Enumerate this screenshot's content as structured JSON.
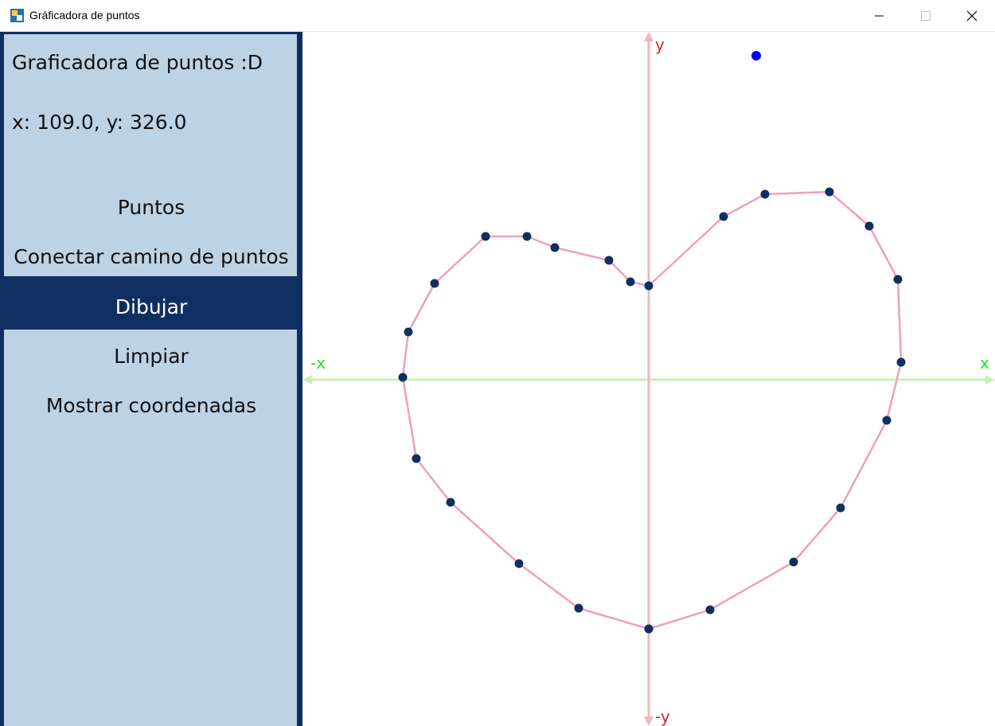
{
  "window": {
    "title": "Gráficadora de puntos",
    "icon": "python-icon",
    "controls": [
      "minimize-icon",
      "maximize-icon",
      "close-icon"
    ]
  },
  "sidebar": {
    "heading": "Graficadora de puntos :D",
    "coords_readout": "x: 109.0, y: 326.0",
    "buttons": {
      "points": "Puntos",
      "connect_path": "Conectar camino de puntos",
      "draw": "Dibujar",
      "clear": "Limpiar",
      "show_coords": "Mostrar coordenadas"
    },
    "active_button": "Dibujar"
  },
  "plot": {
    "axis_labels": {
      "x_pos": "x",
      "x_neg": "-x",
      "y_pos": "y",
      "y_neg": "-y"
    },
    "colors": {
      "x_axis": "#c9f0b4",
      "y_axis": "#f1b7bd",
      "x_label": "#22dd22",
      "y_label": "#cc2a2a",
      "path": "#ef9fbd",
      "point": "#0f2f61",
      "cursor_point": "#0000ff"
    },
    "path_closed": false,
    "points": [
      [
        0,
        -313
      ],
      [
        -88,
        -287
      ],
      [
        -163,
        -231
      ],
      [
        -249,
        -154
      ],
      [
        -292,
        -99
      ],
      [
        -309,
        3
      ],
      [
        -302,
        60
      ],
      [
        -269,
        121
      ],
      [
        -205,
        180
      ],
      [
        -153,
        180
      ],
      [
        -118,
        166
      ],
      [
        -50,
        150
      ],
      [
        -23,
        123
      ],
      [
        0,
        118
      ],
      [
        94,
        205
      ],
      [
        146,
        233
      ],
      [
        227,
        236
      ],
      [
        277,
        193
      ],
      [
        313,
        126
      ],
      [
        317,
        22
      ],
      [
        299,
        -51
      ],
      [
        241,
        -161
      ],
      [
        182,
        -229
      ],
      [
        77,
        -289
      ],
      [
        0,
        -313
      ]
    ],
    "cursor_point": [
      135,
      407
    ]
  }
}
